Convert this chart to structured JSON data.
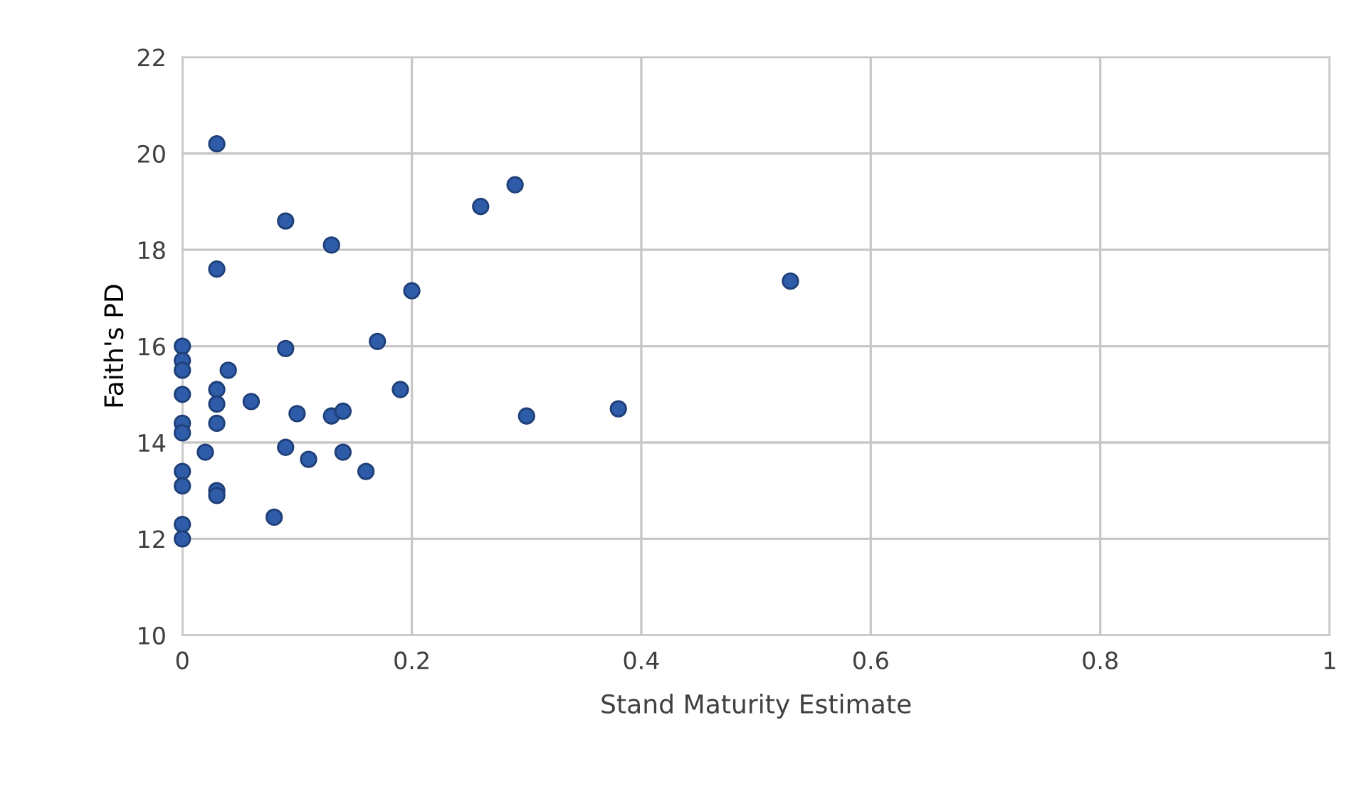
{
  "chart_data": {
    "type": "scatter",
    "xlabel": "Stand Maturity Estimate",
    "ylabel": "Faith's PD",
    "series": [
      {
        "color": "#2e5ca8",
        "x": [
          0,
          0,
          0,
          0,
          0,
          0,
          0,
          0,
          0,
          0,
          0.03,
          0.03,
          0.03,
          0.03,
          0.03,
          0.03,
          0.03,
          0.02,
          0.04,
          0.06,
          0.08,
          0.09,
          0.09,
          0.09,
          0.1,
          0.11,
          0.13,
          0.13,
          0.14,
          0.14,
          0.16,
          0.17,
          0.19,
          0.2,
          0.26,
          0.29,
          0.3,
          0.38,
          0.53
        ],
        "values": [
          16.0,
          15.7,
          15.5,
          15.0,
          14.4,
          14.2,
          13.4,
          13.1,
          12.3,
          12.0,
          20.2,
          17.6,
          15.1,
          14.8,
          14.4,
          13.0,
          12.9,
          13.8,
          15.5,
          14.85,
          12.45,
          18.6,
          15.95,
          13.9,
          14.6,
          13.65,
          18.1,
          14.55,
          14.65,
          13.8,
          13.4,
          16.1,
          15.1,
          17.15,
          18.9,
          19.35,
          14.55,
          14.7,
          17.35
        ]
      }
    ],
    "xlim": [
      0,
      1
    ],
    "xticks": [
      0,
      0.2,
      0.4,
      0.6,
      0.8,
      1
    ],
    "ylim": [
      10,
      22
    ],
    "yticks": [
      10,
      12,
      14,
      16,
      18,
      20,
      22
    ],
    "grid": true,
    "marker": "circle"
  }
}
